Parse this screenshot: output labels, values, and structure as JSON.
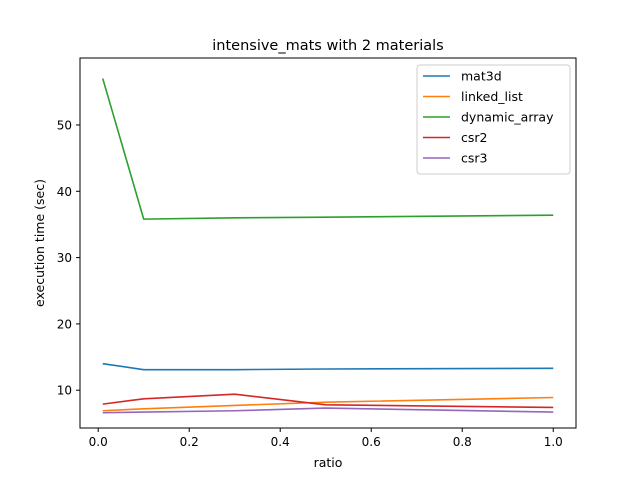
{
  "chart_data": {
    "type": "line",
    "title": "intensive_mats with 2 materials",
    "xlabel": "ratio",
    "ylabel": "execution time (sec)",
    "xlim": [
      -0.04,
      1.05
    ],
    "ylim": [
      4.3,
      60.1
    ],
    "xticks": [
      0.0,
      0.2,
      0.4,
      0.6,
      0.8,
      1.0
    ],
    "xtick_labels": [
      "0.0",
      "0.2",
      "0.4",
      "0.6",
      "0.8",
      "1.0"
    ],
    "yticks": [
      10,
      20,
      30,
      40,
      50
    ],
    "ytick_labels": [
      "10",
      "20",
      "30",
      "40",
      "50"
    ],
    "grid": false,
    "legend_position": "top-right",
    "x": [
      0.01,
      0.1,
      0.3,
      0.5,
      1.0
    ],
    "series": [
      {
        "name": "mat3d",
        "color": "#1f77b4",
        "values": [
          14.0,
          13.1,
          13.1,
          13.2,
          13.3
        ]
      },
      {
        "name": "linked_list",
        "color": "#ff7f0e",
        "values": [
          6.9,
          7.2,
          7.7,
          8.2,
          8.9
        ]
      },
      {
        "name": "dynamic_array",
        "color": "#2ca02c",
        "values": [
          57.0,
          35.8,
          36.0,
          36.1,
          36.4
        ]
      },
      {
        "name": "csr2",
        "color": "#d62728",
        "values": [
          7.9,
          8.7,
          9.4,
          7.8,
          7.4
        ]
      },
      {
        "name": "csr3",
        "color": "#9467bd",
        "values": [
          6.6,
          6.7,
          6.9,
          7.3,
          6.7
        ]
      }
    ]
  }
}
